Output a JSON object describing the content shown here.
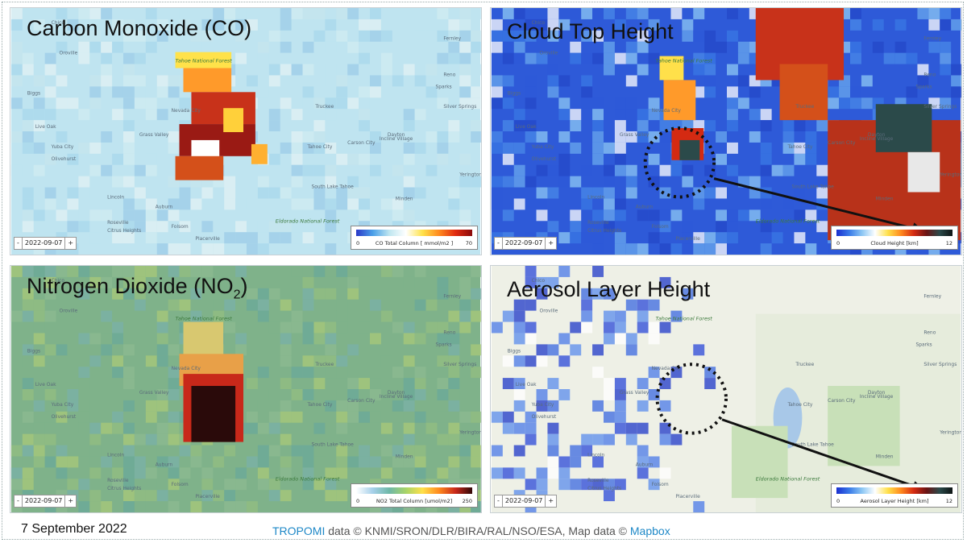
{
  "panels": [
    {
      "id": "co",
      "title": "Carbon Monoxide (CO)",
      "date": "2022-09-07",
      "legend": {
        "title": "CO Total Column [ mmol/m2 ]",
        "min": "0",
        "max": "70",
        "gradient": [
          "#2a38c8",
          "#4aa0e8",
          "#bfe6f0",
          "#ffffff",
          "#ffe24a",
          "#ff8a1e",
          "#e02a10",
          "#8a0a0a"
        ]
      }
    },
    {
      "id": "cloud",
      "title": "Cloud Top Height",
      "date": "2022-09-07",
      "legend": {
        "title": "Cloud Height [km]",
        "min": "0",
        "max": "12",
        "gradient": [
          "#1a2fd0",
          "#3a7be8",
          "#8ec8f4",
          "#ffffff",
          "#ffe04a",
          "#ff8a1e",
          "#d42a12",
          "#6a1414",
          "#2b4a4a",
          "#0e1414"
        ]
      }
    },
    {
      "id": "no2",
      "title_main": "Nitrogen Dioxide (NO",
      "title_sub": "2",
      "title_end": ")",
      "date": "2022-09-07",
      "legend": {
        "title": "NO2 Total Column [umol/m2]",
        "min": "0",
        "max": "250",
        "gradient": [
          "#ffffff",
          "#a6d0ea",
          "#6fb8a8",
          "#a8d468",
          "#ffe04a",
          "#ff8a1e",
          "#c8281a",
          "#300808"
        ]
      }
    },
    {
      "id": "aerosol",
      "title": "Aerosol Layer Height",
      "date": "2022-09-07",
      "legend": {
        "title": "Aerosol Layer Height [km]",
        "min": "0",
        "max": "12",
        "gradient": [
          "#1a2fd0",
          "#3a7be8",
          "#8ec8f4",
          "#ffffff",
          "#ffe04a",
          "#ff8a1e",
          "#d42a12",
          "#6a1414",
          "#2b4a4a",
          "#0e1414"
        ]
      }
    }
  ],
  "map_labels": {
    "forest_north": "Tahoe National Forest",
    "forest_south": "Eldorado National Forest",
    "places": [
      "Oroville",
      "Chico",
      "Live Oak",
      "Biggs",
      "Yuba City",
      "Olivehurst",
      "Grass Valley",
      "Auburn",
      "Lincoln",
      "Roseville",
      "Placerville",
      "Truckee",
      "Reno",
      "Sparks",
      "Carson City",
      "Dayton",
      "Minden",
      "Silver Springs",
      "South Lake Tahoe",
      "Yerington",
      "Fernley",
      "Tahoe City",
      "Incline Village",
      "Citrus Heights",
      "Folsom",
      "Nevada City"
    ]
  },
  "controls": {
    "minus": "-",
    "plus": "+"
  },
  "footer": {
    "date": "7 September 2022",
    "credit_link1": "TROPOMI",
    "credit_mid": " data © KNMI/SRON/DLR/BIRA/RAL/NSO/ESA, Map data © ",
    "credit_link2": "Mapbox"
  }
}
